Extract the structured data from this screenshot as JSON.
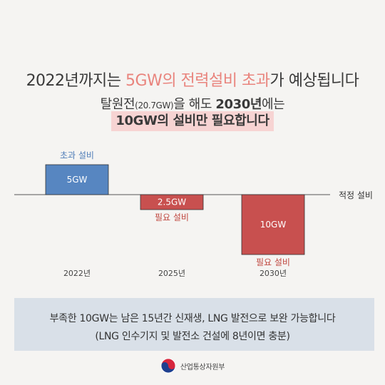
{
  "headline": {
    "line1_prefix": "2022년까지는 ",
    "line1_highlight": "5GW의 전력설비 초과",
    "line1_suffix": "가 예상됩니다",
    "line2_prefix": "탈원전",
    "line2_small": "(20.7GW)",
    "line2_mid": "을 해도 ",
    "line2_bold": "2030년",
    "line2_suffix": "에는",
    "line3": "10GW의 설비만 필요합니다"
  },
  "chart_data": {
    "type": "bar",
    "categories": [
      "2022년",
      "2025년",
      "2030년"
    ],
    "values": [
      5,
      -2.5,
      -10
    ],
    "data_labels": [
      "5GW",
      "2.5GW",
      "10GW"
    ],
    "bar_annotations": [
      "초과 설비",
      "필요 설비",
      "필요 설비"
    ],
    "baseline_label": "적정 설비",
    "colors": {
      "surplus": "#5786c1",
      "shortage": "#c8504f",
      "surplus_label": "#4f7db8",
      "shortage_label": "#c0473f"
    }
  },
  "info": {
    "line1": "부족한 10GW는 남은 15년간 신재생, LNG 발전으로 보완 가능합니다",
    "line2": "(LNG 인수기지 및 발전소 건설에 8년이면 충분)"
  },
  "footer": {
    "ministry": "산업통상자원부",
    "logo_icon": "taegeuk-emblem-icon"
  }
}
